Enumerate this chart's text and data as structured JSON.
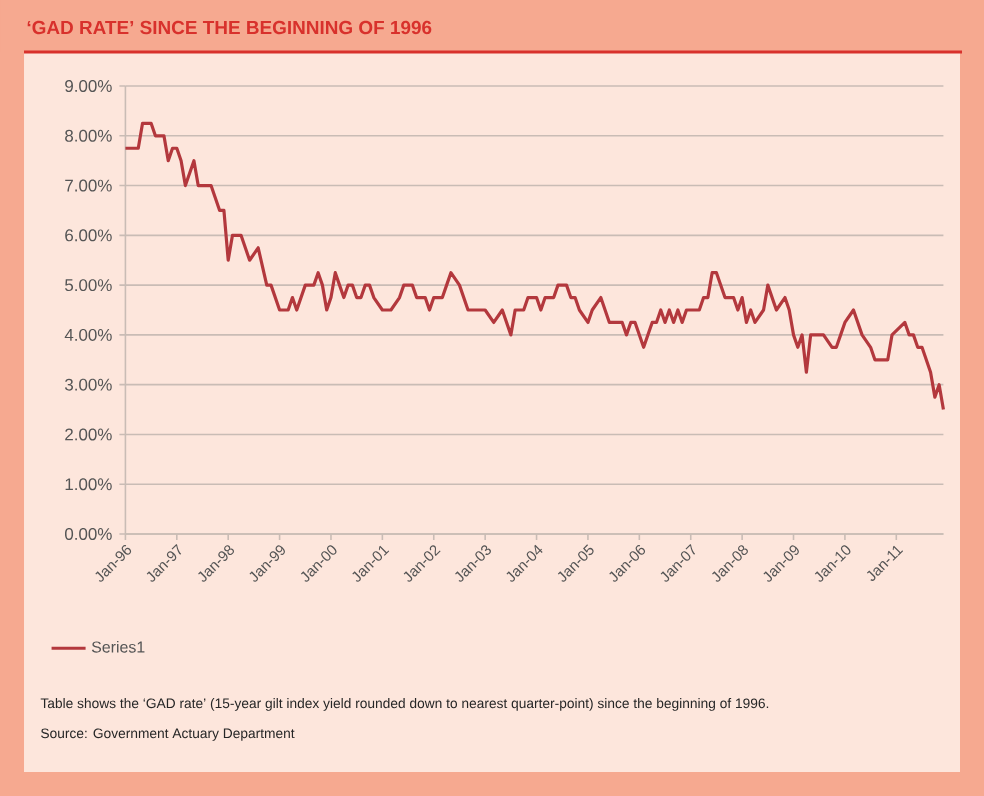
{
  "chart_data": {
    "type": "line",
    "title": "‘GAD RATE’ SINCE THE BEGINNING OF 1996",
    "annotations": [
      "Table shows the ‘GAD rate’ (15-year gilt index yield rounded down to nearest quarter-point) since the beginning of 1996.",
      "Source: Government Actuary Department"
    ],
    "series": [
      {
        "name": "Series1",
        "color": "#b3383d",
        "x": [
          "1996-01",
          "1996-04",
          "1996-05",
          "1996-07",
          "1996-08",
          "1996-10",
          "1996-11",
          "1996-12",
          "1997-01",
          "1997-02",
          "1997-03",
          "1997-05",
          "1997-06",
          "1997-09",
          "1997-10",
          "1997-11",
          "1997-12",
          "1998-01",
          "1998-02",
          "1998-04",
          "1998-05",
          "1998-06",
          "1998-08",
          "1998-10",
          "1998-11",
          "1998-12",
          "1999-01",
          "1999-03",
          "1999-04",
          "1999-05",
          "1999-06",
          "1999-07",
          "1999-09",
          "1999-10",
          "1999-11",
          "1999-12",
          "2000-01",
          "2000-02",
          "2000-03",
          "2000-04",
          "2000-05",
          "2000-06",
          "2000-07",
          "2000-08",
          "2000-09",
          "2000-10",
          "2000-11",
          "2001-01",
          "2001-03",
          "2001-05",
          "2001-06",
          "2001-08",
          "2001-09",
          "2001-11",
          "2001-12",
          "2002-01",
          "2002-03",
          "2002-04",
          "2002-05",
          "2002-07",
          "2002-09",
          "2003-01",
          "2003-03",
          "2003-05",
          "2003-07",
          "2003-08",
          "2003-10",
          "2003-11",
          "2004-01",
          "2004-02",
          "2004-03",
          "2004-05",
          "2004-06",
          "2004-08",
          "2004-09",
          "2004-10",
          "2004-11",
          "2005-01",
          "2005-02",
          "2005-04",
          "2005-06",
          "2005-09",
          "2005-10",
          "2005-11",
          "2005-12",
          "2006-02",
          "2006-04",
          "2006-05",
          "2006-06",
          "2006-07",
          "2006-08",
          "2006-09",
          "2006-10",
          "2006-11",
          "2006-12",
          "2007-03",
          "2007-04",
          "2007-05",
          "2007-06",
          "2007-07",
          "2007-09",
          "2007-11",
          "2007-12",
          "2008-01",
          "2008-02",
          "2008-03",
          "2008-04",
          "2008-06",
          "2008-07",
          "2008-09",
          "2008-11",
          "2008-12",
          "2009-01",
          "2009-02",
          "2009-03",
          "2009-04",
          "2009-05",
          "2009-06",
          "2009-08",
          "2009-10",
          "2009-11",
          "2009-12",
          "2010-01",
          "2010-03",
          "2010-04",
          "2010-05",
          "2010-07",
          "2010-08",
          "2010-11",
          "2010-12",
          "2011-03",
          "2011-04",
          "2011-05",
          "2011-06",
          "2011-07",
          "2011-09",
          "2011-10",
          "2011-11",
          "2011-12"
        ],
        "values": [
          7.75,
          7.75,
          8.25,
          8.25,
          8.0,
          8.0,
          7.5,
          7.75,
          7.75,
          7.5,
          7.0,
          7.5,
          7.0,
          7.0,
          6.75,
          6.5,
          6.5,
          5.5,
          6.0,
          6.0,
          5.75,
          5.5,
          5.75,
          5.0,
          5.0,
          4.75,
          4.5,
          4.5,
          4.75,
          4.5,
          4.75,
          5.0,
          5.0,
          5.25,
          5.0,
          4.5,
          4.75,
          5.25,
          5.0,
          4.75,
          5.0,
          5.0,
          4.75,
          4.75,
          5.0,
          5.0,
          4.75,
          4.5,
          4.5,
          4.75,
          5.0,
          5.0,
          4.75,
          4.75,
          4.5,
          4.75,
          4.75,
          5.0,
          5.25,
          5.0,
          4.5,
          4.5,
          4.25,
          4.5,
          4.0,
          4.5,
          4.5,
          4.75,
          4.75,
          4.5,
          4.75,
          4.75,
          5.0,
          5.0,
          4.75,
          4.75,
          4.5,
          4.25,
          4.5,
          4.75,
          4.25,
          4.25,
          4.0,
          4.25,
          4.25,
          3.75,
          4.25,
          4.25,
          4.5,
          4.25,
          4.5,
          4.25,
          4.5,
          4.25,
          4.5,
          4.5,
          4.75,
          4.75,
          5.25,
          5.25,
          4.75,
          4.75,
          4.5,
          4.75,
          4.25,
          4.5,
          4.25,
          4.5,
          5.0,
          4.5,
          4.75,
          4.5,
          4.0,
          3.75,
          4.0,
          3.25,
          4.0,
          4.0,
          4.0,
          3.75,
          3.75,
          4.0,
          4.25,
          4.5,
          4.25,
          4.0,
          3.75,
          3.5,
          3.5,
          4.0,
          4.25,
          4.0,
          4.0,
          3.75,
          3.75,
          3.25,
          2.75,
          3.0,
          2.5
        ]
      }
    ],
    "xlim": [
      "1996-01",
      "2011-12"
    ],
    "xticks": [
      {
        "value": "1996-01",
        "label": "Jan-96"
      },
      {
        "value": "1997-01",
        "label": "Jan-97"
      },
      {
        "value": "1998-01",
        "label": "Jan-98"
      },
      {
        "value": "1999-01",
        "label": "Jan-99"
      },
      {
        "value": "2000-01",
        "label": "Jan-00"
      },
      {
        "value": "2001-01",
        "label": "Jan-01"
      },
      {
        "value": "2002-01",
        "label": "Jan-02"
      },
      {
        "value": "2003-01",
        "label": "Jan-03"
      },
      {
        "value": "2004-01",
        "label": "Jan-04"
      },
      {
        "value": "2005-01",
        "label": "Jan-05"
      },
      {
        "value": "2006-01",
        "label": "Jan-06"
      },
      {
        "value": "2007-01",
        "label": "Jan-07"
      },
      {
        "value": "2008-01",
        "label": "Jan-08"
      },
      {
        "value": "2009-01",
        "label": "Jan-09"
      },
      {
        "value": "2010-01",
        "label": "Jan-10"
      },
      {
        "value": "2011-01",
        "label": "Jan-11"
      }
    ],
    "ylim": [
      0,
      9
    ],
    "yticks": [
      {
        "value": 0,
        "label": "0.00%"
      },
      {
        "value": 1,
        "label": "1.00%"
      },
      {
        "value": 2,
        "label": "2.00%"
      },
      {
        "value": 3,
        "label": "3.00%"
      },
      {
        "value": 4,
        "label": "4.00%"
      },
      {
        "value": 5,
        "label": "5.00%"
      },
      {
        "value": 6,
        "label": "6.00%"
      },
      {
        "value": 7,
        "label": "7.00%"
      },
      {
        "value": 8,
        "label": "8.00%"
      },
      {
        "value": 9,
        "label": "9.00%"
      }
    ],
    "grid": "y",
    "legend": "bottom left"
  }
}
